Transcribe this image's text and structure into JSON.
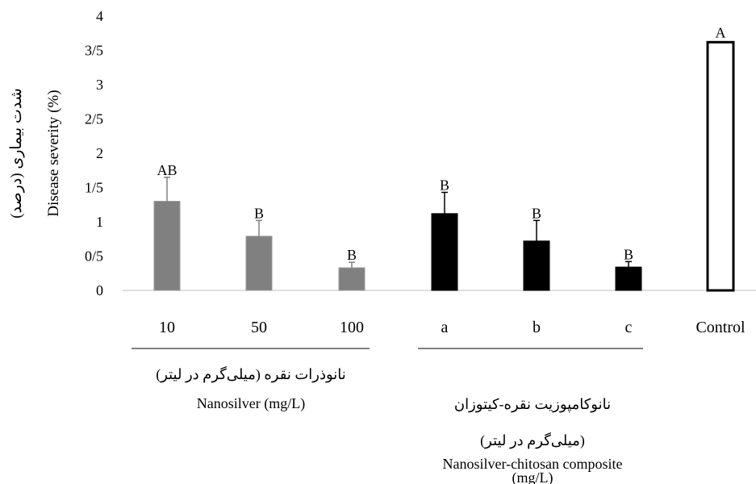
{
  "chart_data": {
    "type": "bar",
    "ylabel_fa": "شدت بیماری (درصد)",
    "ylabel_en": "Disease severity (%)",
    "ylim": [
      0,
      4
    ],
    "yticks": [
      "0",
      "0/5",
      "1",
      "1/5",
      "2",
      "2/5",
      "3",
      "3/5",
      "4"
    ],
    "ytick_values": [
      0,
      0.5,
      1,
      1.5,
      2,
      2.5,
      3,
      3.5,
      4
    ],
    "categories": [
      "10",
      "50",
      "100",
      "a",
      "b",
      "c",
      "Control"
    ],
    "values": [
      1.3,
      0.79,
      0.33,
      1.12,
      0.72,
      0.34,
      3.62
    ],
    "errors": [
      0.35,
      0.23,
      0.08,
      0.31,
      0.3,
      0.08,
      0
    ],
    "letters": [
      "AB",
      "B",
      "B",
      "B",
      "B",
      "B",
      "A"
    ],
    "fills": [
      "#808080",
      "#808080",
      "#808080",
      "#000000",
      "#000000",
      "#000000",
      "#ffffff"
    ],
    "grid": false,
    "groups": [
      {
        "label_fa": "نانوذرات نقره (میلی‌گرم در لیتر)",
        "label_en": "Nanosilver (mg/L)"
      },
      {
        "label_fa_line1": "نانوکامپوزیت نقره-کیتوزان",
        "label_fa_line2": "(میلی‌گرم در لیتر)",
        "label_en_line1": "Nanosilver-chitosan composite",
        "label_en_line2": "(mg/L)"
      }
    ]
  }
}
